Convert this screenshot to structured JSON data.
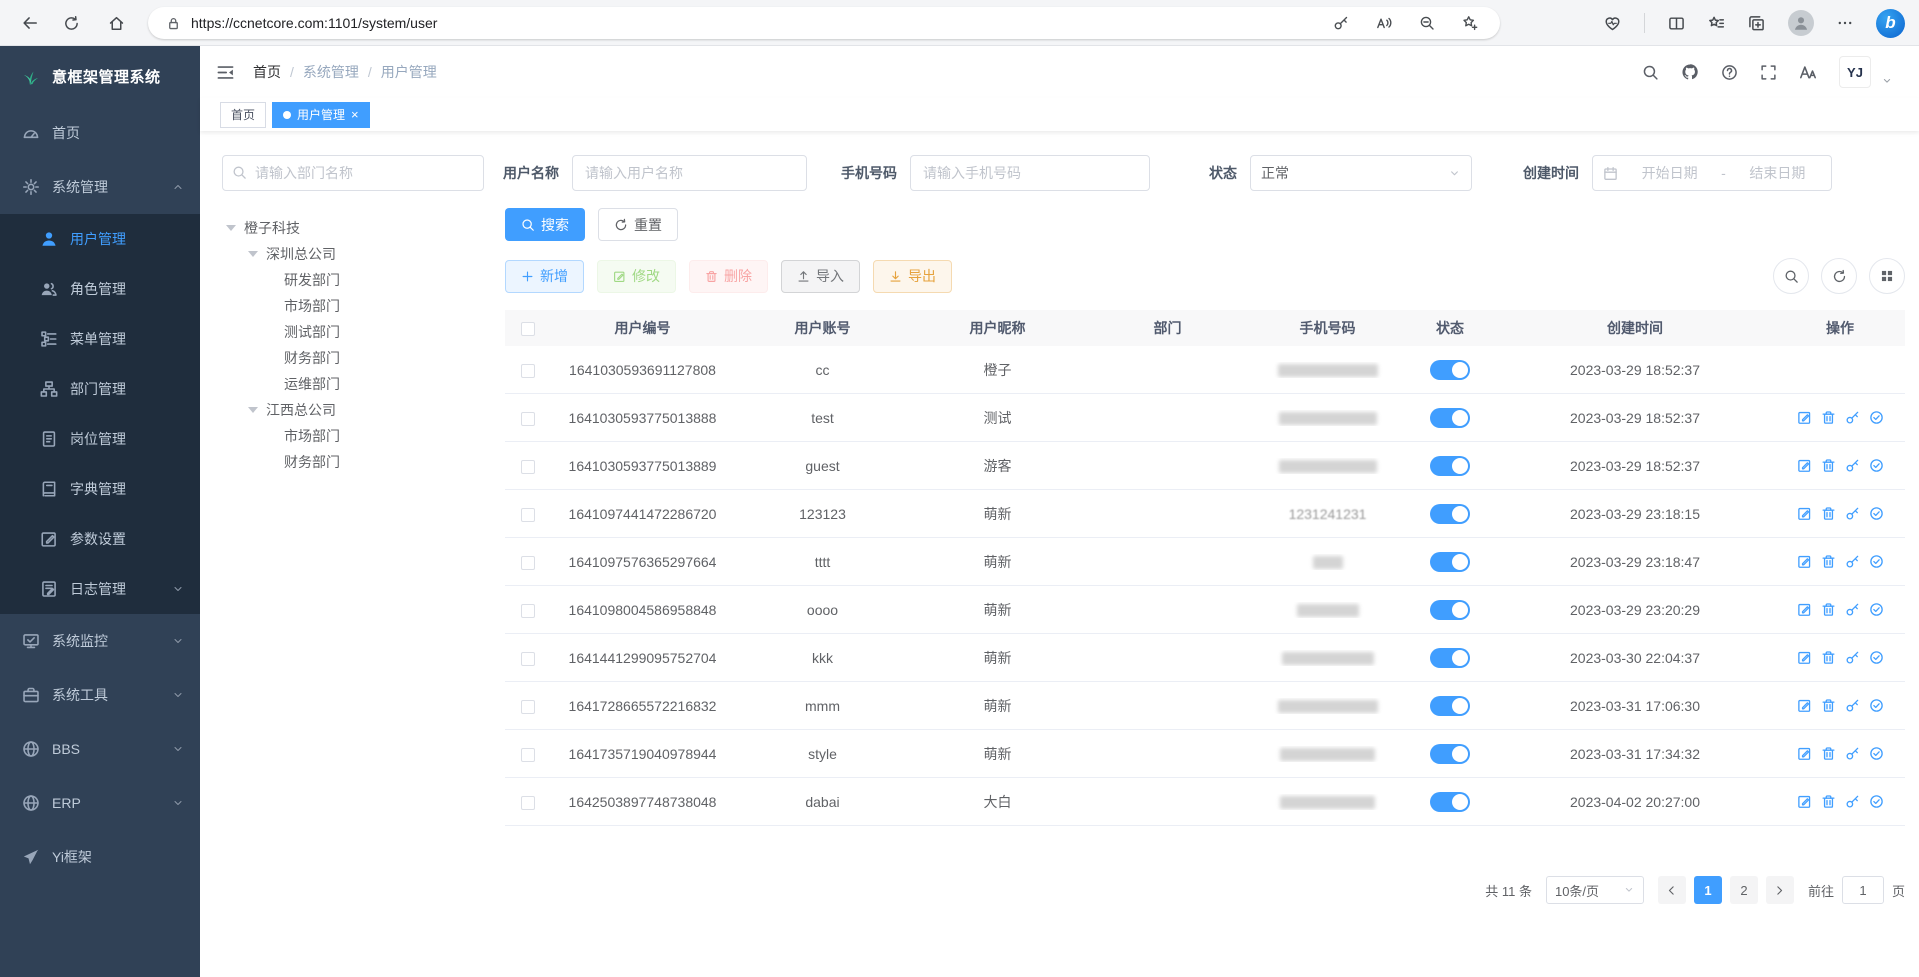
{
  "browser": {
    "url": "https://ccnetcore.com:1101/system/user",
    "bing_letter": "b",
    "left_icons": [
      "back-icon",
      "refresh-icon",
      "home-icon"
    ],
    "pill_icons": [
      "key-icon",
      "read-aloud-icon",
      "zoom-out-icon",
      "star-plus-icon"
    ],
    "right_icons": [
      "essentials-icon",
      "split-screen-icon",
      "favorites-icon",
      "collections-icon",
      "profile-icon",
      "ellipsis-icon",
      "bing-icon"
    ]
  },
  "sidebar": {
    "logo_text": "意框架管理系统",
    "logo_icon": "sprout-icon",
    "menu": [
      {
        "key": "home",
        "label": "首页",
        "icon": "dashboard-icon",
        "type": "root"
      },
      {
        "key": "system",
        "label": "系统管理",
        "icon": "gear-icon",
        "type": "root",
        "chevron": "up"
      },
      {
        "key": "user",
        "label": "用户管理",
        "icon": "user-icon",
        "type": "sub",
        "active": true
      },
      {
        "key": "role",
        "label": "角色管理",
        "icon": "users-icon",
        "type": "sub"
      },
      {
        "key": "menu",
        "label": "菜单管理",
        "icon": "menu-tree-icon",
        "type": "sub"
      },
      {
        "key": "dept",
        "label": "部门管理",
        "icon": "org-icon",
        "type": "sub"
      },
      {
        "key": "post",
        "label": "岗位管理",
        "icon": "badge-icon",
        "type": "sub"
      },
      {
        "key": "dict",
        "label": "字典管理",
        "icon": "book-icon",
        "type": "sub"
      },
      {
        "key": "param",
        "label": "参数设置",
        "icon": "edit-square-icon",
        "type": "sub"
      },
      {
        "key": "log",
        "label": "日志管理",
        "icon": "log-icon",
        "type": "sub",
        "chevron": "down"
      },
      {
        "key": "monitor",
        "label": "系统监控",
        "icon": "monitor-icon",
        "type": "root",
        "chevron": "down"
      },
      {
        "key": "tools",
        "label": "系统工具",
        "icon": "toolbox-icon",
        "type": "root",
        "chevron": "down"
      },
      {
        "key": "bbs",
        "label": "BBS",
        "icon": "globe-icon",
        "type": "root",
        "chevron": "down"
      },
      {
        "key": "erp",
        "label": "ERP",
        "icon": "globe-icon",
        "type": "root",
        "chevron": "down"
      },
      {
        "key": "yiframe",
        "label": "Yi框架",
        "icon": "plane-icon",
        "type": "root"
      }
    ]
  },
  "topbar": {
    "breadcrumbs": [
      "首页",
      "系统管理",
      "用户管理"
    ],
    "icons": [
      "search-icon",
      "github-icon",
      "help-icon",
      "fullscreen-icon",
      "font-size-icon"
    ],
    "avatar_text": "YJ"
  },
  "tabs": [
    {
      "label": "首页",
      "active": false
    },
    {
      "label": "用户管理",
      "active": true,
      "closable": true,
      "close_glyph": "×"
    }
  ],
  "filters": {
    "dept_placeholder": "请输入部门名称",
    "username_label": "用户名称",
    "username_placeholder": "请输入用户名称",
    "phone_label": "手机号码",
    "phone_placeholder": "请输入手机号码",
    "status_label": "状态",
    "status_value": "正常",
    "created_label": "创建时间",
    "date_start_placeholder": "开始日期",
    "date_separator": "-",
    "date_end_placeholder": "结束日期",
    "search_label": "搜索",
    "reset_label": "重置"
  },
  "tree": [
    {
      "label": "橙子科技",
      "level": 0,
      "expandable": true
    },
    {
      "label": "深圳总公司",
      "level": 1,
      "expandable": true
    },
    {
      "label": "研发部门",
      "level": 2
    },
    {
      "label": "市场部门",
      "level": 2
    },
    {
      "label": "测试部门",
      "level": 2
    },
    {
      "label": "财务部门",
      "level": 2
    },
    {
      "label": "运维部门",
      "level": 2
    },
    {
      "label": "江西总公司",
      "level": 1,
      "expandable": true
    },
    {
      "label": "市场部门",
      "level": 2
    },
    {
      "label": "财务部门",
      "level": 2
    }
  ],
  "toolbar": {
    "add_label": "新增",
    "edit_label": "修改",
    "delete_label": "删除",
    "import_label": "导入",
    "export_label": "导出",
    "right_icons": [
      "search-icon",
      "refresh-icon",
      "grid-icon"
    ]
  },
  "table": {
    "columns": [
      "用户编号",
      "用户账号",
      "用户昵称",
      "部门",
      "手机号码",
      "状态",
      "创建时间",
      "操作"
    ],
    "action_icons": [
      "edit-action-icon",
      "delete-action-icon",
      "reset-password-icon",
      "assign-role-icon"
    ],
    "rows": [
      {
        "id": "1641030593691127808",
        "account": "cc",
        "nickname": "橙子",
        "dept": "",
        "phone_visible": "",
        "phone_blur_width": 100,
        "status_on": true,
        "created": "2023-03-29 18:52:37",
        "actions": false
      },
      {
        "id": "1641030593775013888",
        "account": "test",
        "nickname": "测试",
        "dept": "",
        "phone_visible": "",
        "phone_blur_width": 98,
        "status_on": true,
        "created": "2023-03-29 18:52:37",
        "actions": true
      },
      {
        "id": "1641030593775013889",
        "account": "guest",
        "nickname": "游客",
        "dept": "",
        "phone_visible": "",
        "phone_blur_width": 98,
        "status_on": true,
        "created": "2023-03-29 18:52:37",
        "actions": true
      },
      {
        "id": "1641097441472286720",
        "account": "123123",
        "nickname": "萌新",
        "dept": "",
        "phone_visible": "1231241231",
        "phone_blur_width": 0,
        "status_on": true,
        "created": "2023-03-29 23:18:15",
        "actions": true
      },
      {
        "id": "1641097576365297664",
        "account": "tttt",
        "nickname": "萌新",
        "dept": "",
        "phone_visible": "",
        "phone_blur_width": 30,
        "status_on": true,
        "created": "2023-03-29 23:18:47",
        "actions": true
      },
      {
        "id": "1641098004586958848",
        "account": "oooo",
        "nickname": "萌新",
        "dept": "",
        "phone_visible": "",
        "phone_blur_width": 62,
        "status_on": true,
        "created": "2023-03-29 23:20:29",
        "actions": true
      },
      {
        "id": "1641441299095752704",
        "account": "kkk",
        "nickname": "萌新",
        "dept": "",
        "phone_visible": "",
        "phone_blur_width": 92,
        "status_on": true,
        "created": "2023-03-30 22:04:37",
        "actions": true
      },
      {
        "id": "1641728665572216832",
        "account": "mmm",
        "nickname": "萌新",
        "dept": "",
        "phone_visible": "",
        "phone_blur_width": 100,
        "status_on": true,
        "created": "2023-03-31 17:06:30",
        "actions": true
      },
      {
        "id": "1641735719040978944",
        "account": "style",
        "nickname": "萌新",
        "dept": "",
        "phone_visible": "",
        "phone_blur_width": 95,
        "status_on": true,
        "created": "2023-03-31 17:34:32",
        "actions": true
      },
      {
        "id": "1642503897748738048",
        "account": "dabai",
        "nickname": "大白",
        "dept": "",
        "phone_visible": "",
        "phone_blur_width": 95,
        "status_on": true,
        "created": "2023-04-02 20:27:00",
        "actions": true
      }
    ]
  },
  "pagination": {
    "total_label": "共 11 条",
    "page_size_label": "10条/页",
    "pages": [
      "1",
      "2"
    ],
    "active_page": "1",
    "goto_label": "前往",
    "goto_value": "1",
    "unit_label": "页"
  }
}
